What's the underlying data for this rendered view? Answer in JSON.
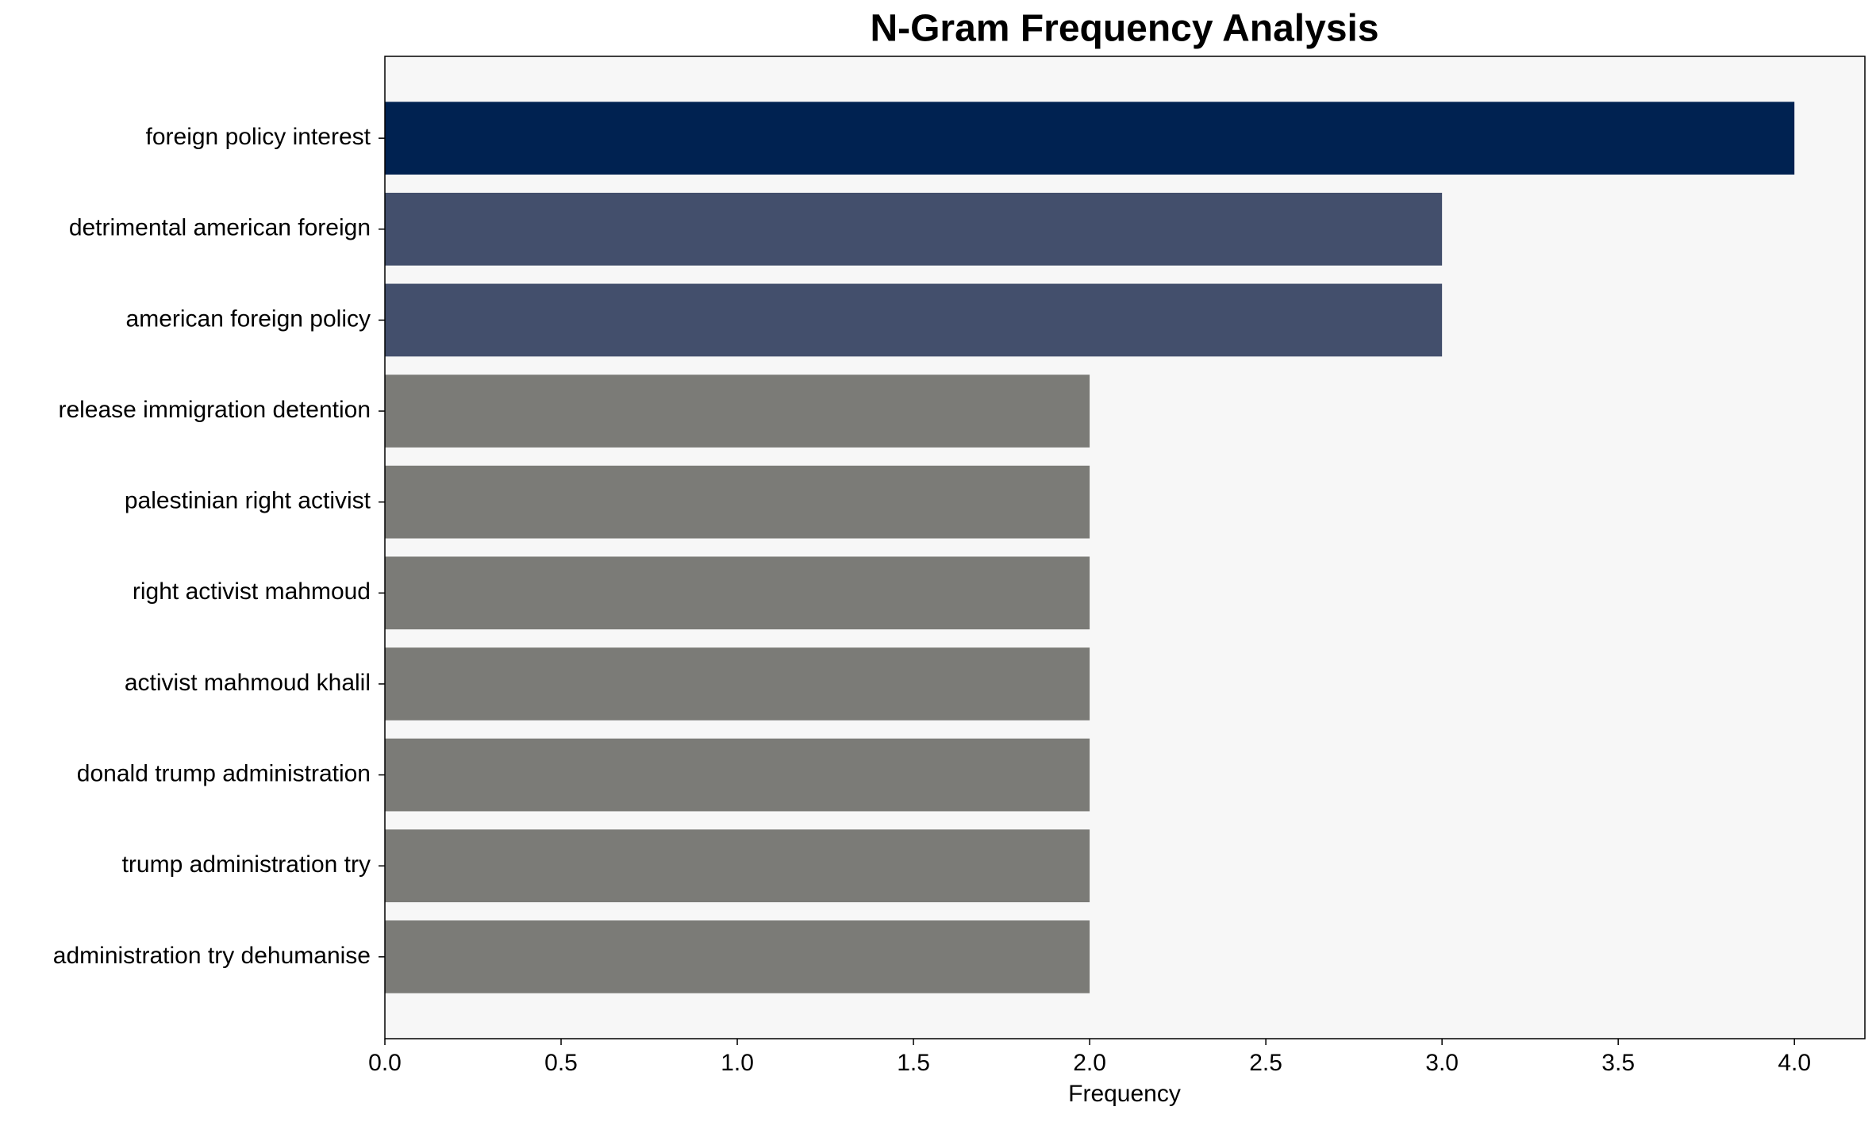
{
  "chart_data": {
    "type": "barh",
    "title": "N-Gram Frequency Analysis",
    "x_label": "Frequency",
    "categories": [
      "foreign policy interest",
      "detrimental american foreign",
      "american foreign policy",
      "release immigration detention",
      "palestinian right activist",
      "right activist mahmoud",
      "activist mahmoud khalil",
      "donald trump administration",
      "trump administration try",
      "administration try dehumanise"
    ],
    "values": [
      4,
      3,
      3,
      2,
      2,
      2,
      2,
      2,
      2,
      2
    ],
    "colors": [
      "#002251",
      "#434f6c",
      "#434f6c",
      "#7b7b77",
      "#7b7b77",
      "#7b7b77",
      "#7b7b77",
      "#7b7b77",
      "#7b7b77",
      "#7b7b77"
    ],
    "xlim": [
      0,
      4.2
    ],
    "xticks": [
      {
        "value": 0,
        "label": "0.0"
      },
      {
        "value": 0.5,
        "label": "0.5"
      },
      {
        "value": 1,
        "label": "1.0"
      },
      {
        "value": 1.5,
        "label": "1.5"
      },
      {
        "value": 2,
        "label": "2.0"
      },
      {
        "value": 2.5,
        "label": "2.5"
      },
      {
        "value": 3,
        "label": "3.0"
      },
      {
        "value": 3.5,
        "label": "3.5"
      },
      {
        "value": 4,
        "label": "4.0"
      }
    ],
    "grid": false
  }
}
